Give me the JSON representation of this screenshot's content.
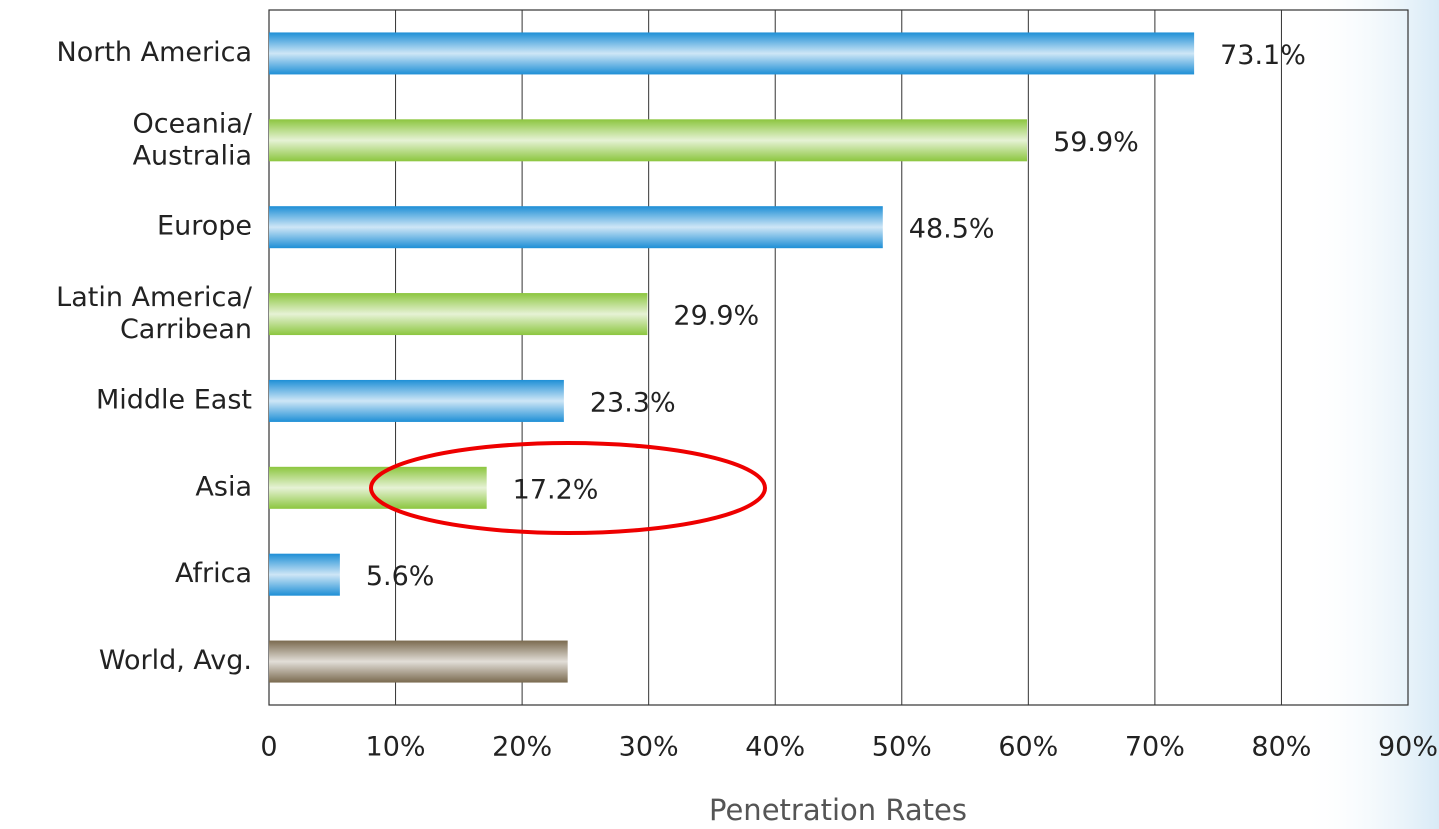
{
  "chart_data": {
    "type": "hbar",
    "categories": [
      "North America",
      "Oceania/\nAustralia",
      "Europe",
      "Latin America/\nCarribean",
      "Middle East",
      "Asia",
      "Africa",
      "World, Avg."
    ],
    "values": [
      73.1,
      59.9,
      48.5,
      29.9,
      23.3,
      17.2,
      5.6,
      23.6
    ],
    "value_labels": [
      "73.1%",
      "59.9%",
      "48.5%",
      "29.9%",
      "23.3%",
      "17.2%",
      "5.6%",
      null
    ],
    "colors": [
      "#1e8fd6",
      "#8cc63f",
      "#1e8fd6",
      "#8cc63f",
      "#1e8fd6",
      "#8cc63f",
      "#1e8fd6",
      "#7a6a4f"
    ],
    "xlabel": "Penetration Rates",
    "xlim": [
      0,
      90
    ],
    "xticks": [
      0,
      {
        "value": 10,
        "label": "10%"
      },
      {
        "value": 20,
        "label": "20%"
      },
      {
        "value": 30,
        "label": "30%"
      },
      {
        "value": 40,
        "label": "40%"
      },
      {
        "value": 50,
        "label": "50%"
      },
      {
        "value": 60,
        "label": "60%"
      },
      {
        "value": 70,
        "label": "70%"
      },
      {
        "value": 80,
        "label": "80%"
      },
      {
        "value": 90,
        "label": "90%"
      }
    ],
    "grid": true
  }
}
